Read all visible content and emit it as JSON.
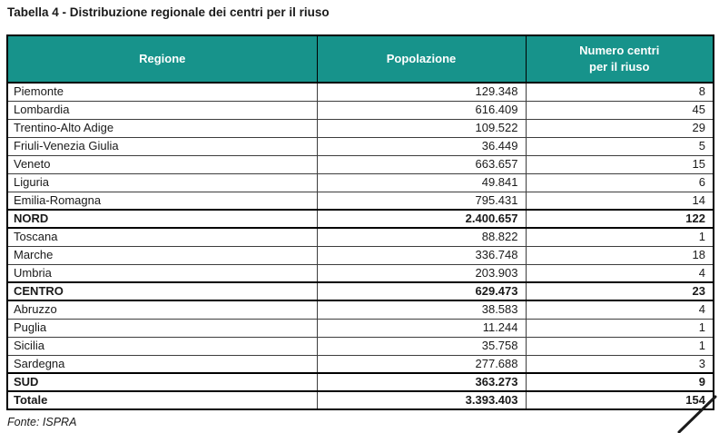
{
  "title": "Tabella 4 - Distribuzione regionale dei centri per il riuso",
  "source": "Fonte: ISPRA",
  "colors": {
    "header_bg": "#17938B",
    "header_text": "#FFFFFF",
    "border": "#000000"
  },
  "table": {
    "headers": [
      "Regione",
      "Popolazione",
      "Numero centri\nper il riuso"
    ],
    "rows": [
      {
        "region": "Piemonte",
        "population": "129.348",
        "centers": "8",
        "bold": false
      },
      {
        "region": "Lombardia",
        "population": "616.409",
        "centers": "45",
        "bold": false
      },
      {
        "region": "Trentino-Alto Adige",
        "population": "109.522",
        "centers": "29",
        "bold": false
      },
      {
        "region": "Friuli-Venezia Giulia",
        "population": "36.449",
        "centers": "5",
        "bold": false
      },
      {
        "region": "Veneto",
        "population": "663.657",
        "centers": "15",
        "bold": false
      },
      {
        "region": "Liguria",
        "population": "49.841",
        "centers": "6",
        "bold": false
      },
      {
        "region": "Emilia-Romagna",
        "population": "795.431",
        "centers": "14",
        "bold": false
      },
      {
        "region": "NORD",
        "population": "2.400.657",
        "centers": "122",
        "bold": true
      },
      {
        "region": "Toscana",
        "population": "88.822",
        "centers": "1",
        "bold": false
      },
      {
        "region": "Marche",
        "population": "336.748",
        "centers": "18",
        "bold": false
      },
      {
        "region": "Umbria",
        "population": "203.903",
        "centers": "4",
        "bold": false
      },
      {
        "region": "CENTRO",
        "population": "629.473",
        "centers": "23",
        "bold": true
      },
      {
        "region": "Abruzzo",
        "population": "38.583",
        "centers": "4",
        "bold": false
      },
      {
        "region": "Puglia",
        "population": "11.244",
        "centers": "1",
        "bold": false
      },
      {
        "region": "Sicilia",
        "population": "35.758",
        "centers": "1",
        "bold": false
      },
      {
        "region": "Sardegna",
        "population": "277.688",
        "centers": "3",
        "bold": false
      },
      {
        "region": "SUD",
        "population": "363.273",
        "centers": "9",
        "bold": true
      },
      {
        "region": "Totale",
        "population": "3.393.403",
        "centers": "154",
        "bold": true
      }
    ]
  }
}
